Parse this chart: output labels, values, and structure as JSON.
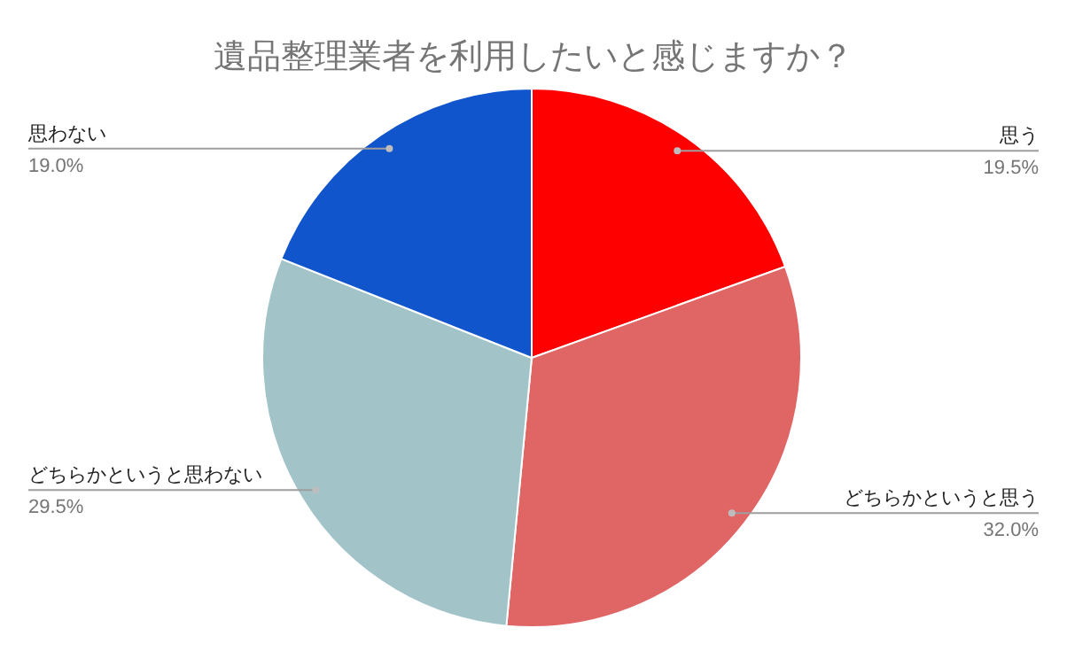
{
  "chart_data": {
    "type": "pie",
    "title": "遺品整理業者を利用したいと感じますか？",
    "categories": [
      "思う",
      "どちらかというと思う",
      "どちらかというと思わない",
      "思わない"
    ],
    "values": [
      19.5,
      32.0,
      29.5,
      19.0
    ],
    "colors": [
      "#ff0000",
      "#e06666",
      "#a2c4c9",
      "#1155cc"
    ],
    "value_labels": [
      "19.5%",
      "32.0%",
      "29.5%",
      "19.0%"
    ]
  }
}
